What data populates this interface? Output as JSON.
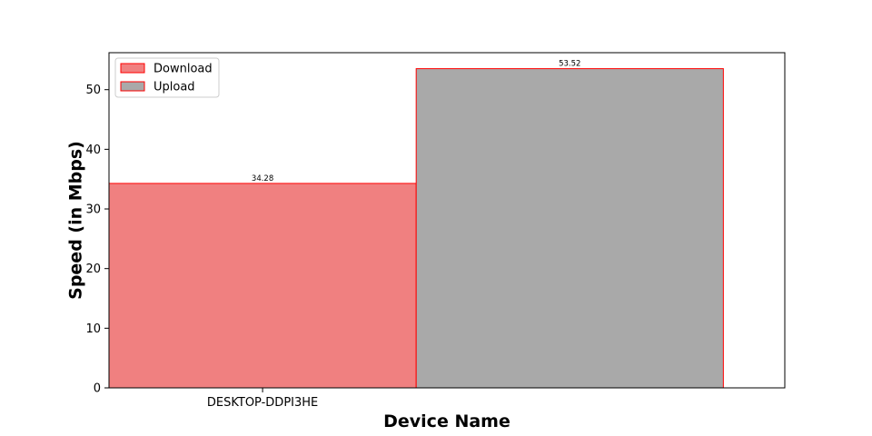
{
  "chart_data": {
    "type": "bar",
    "categories": [
      "DESKTOP-DDPI3HE"
    ],
    "series": [
      {
        "name": "Download",
        "values": [
          34.28
        ],
        "color": "#f08080",
        "edge": "#ff0000"
      },
      {
        "name": "Upload",
        "values": [
          53.52
        ],
        "color": "#a9a9a9",
        "edge": "#ff0000"
      }
    ],
    "data_labels": [
      "34.28",
      "53.52"
    ],
    "xlabel": "Device Name",
    "ylabel": "Speed (in Mbps)",
    "ylim": [
      0,
      56.2
    ],
    "yticks": [
      0,
      10,
      20,
      30,
      40,
      50
    ],
    "grid": false,
    "legend": "top-left"
  }
}
